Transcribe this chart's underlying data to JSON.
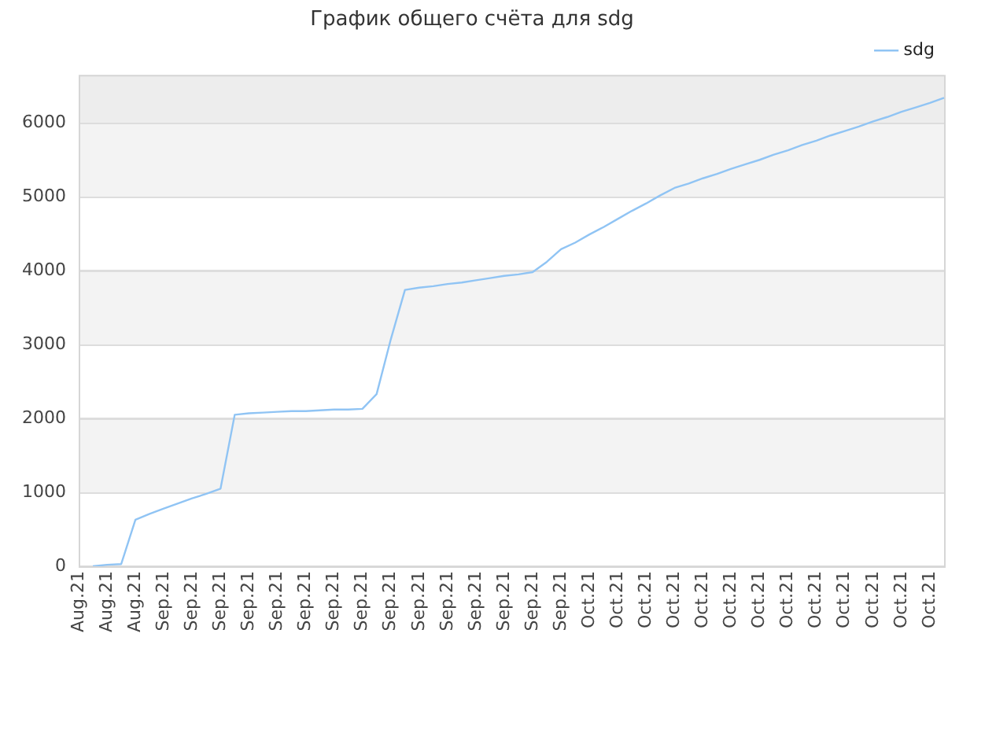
{
  "chart_data": {
    "type": "line",
    "title": "График общего счёта для sdg",
    "categories": [
      "Aug.21",
      null,
      "Aug.21",
      null,
      "Aug.21",
      null,
      "Sep.21",
      null,
      "Sep.21",
      null,
      "Sep.21",
      null,
      "Sep.21",
      null,
      "Sep.21",
      null,
      "Sep.21",
      null,
      "Sep.21",
      null,
      "Sep.21",
      null,
      "Sep.21",
      null,
      "Sep.21",
      null,
      "Sep.21",
      null,
      "Sep.21",
      null,
      "Sep.21",
      null,
      "Sep.21",
      null,
      "Sep.21",
      null,
      "Oct.21",
      null,
      "Oct.21",
      null,
      "Oct.21",
      null,
      "Oct.21",
      null,
      "Oct.21",
      null,
      "Oct.21",
      null,
      "Oct.21",
      null,
      "Oct.21",
      null,
      "Oct.21",
      null,
      "Oct.21",
      null,
      "Oct.21",
      null,
      "Oct.21",
      null,
      "Oct.21",
      null
    ],
    "series": [
      {
        "name": "sdg",
        "color": "#90c4f4",
        "values": [
          null,
          0,
          20,
          30,
          630,
          710,
          780,
          850,
          920,
          980,
          1050,
          2050,
          2070,
          2080,
          2090,
          2100,
          2100,
          2110,
          2120,
          2120,
          2130,
          2330,
          3070,
          3740,
          3770,
          3790,
          3820,
          3840,
          3870,
          3900,
          3930,
          3950,
          3980,
          4120,
          4290,
          4380,
          4490,
          4590,
          4700,
          4810,
          4910,
          5020,
          5120,
          5180,
          5250,
          5310,
          5380,
          5440,
          5500,
          5570,
          5630,
          5700,
          5760,
          5830,
          5890,
          5950,
          6020,
          6080,
          6150,
          6210,
          6270,
          6340
        ]
      }
    ],
    "ylim": [
      0,
      6650
    ],
    "yticks": [
      0,
      1000,
      2000,
      3000,
      4000,
      5000,
      6000
    ],
    "bands": [
      {
        "axis": "y",
        "from": 1000,
        "to": 2000,
        "color": "#f3f3f3"
      },
      {
        "axis": "y",
        "from": 3000,
        "to": 4000,
        "color": "#f3f3f3"
      },
      {
        "axis": "y",
        "from": 5000,
        "to": 6000,
        "color": "#f3f3f3"
      },
      {
        "axis": "y",
        "from": 6000,
        "to": 6650,
        "color": "#ededed"
      }
    ],
    "grid": "y",
    "legend": "top right",
    "marker": "none",
    "line_style": "solid"
  }
}
